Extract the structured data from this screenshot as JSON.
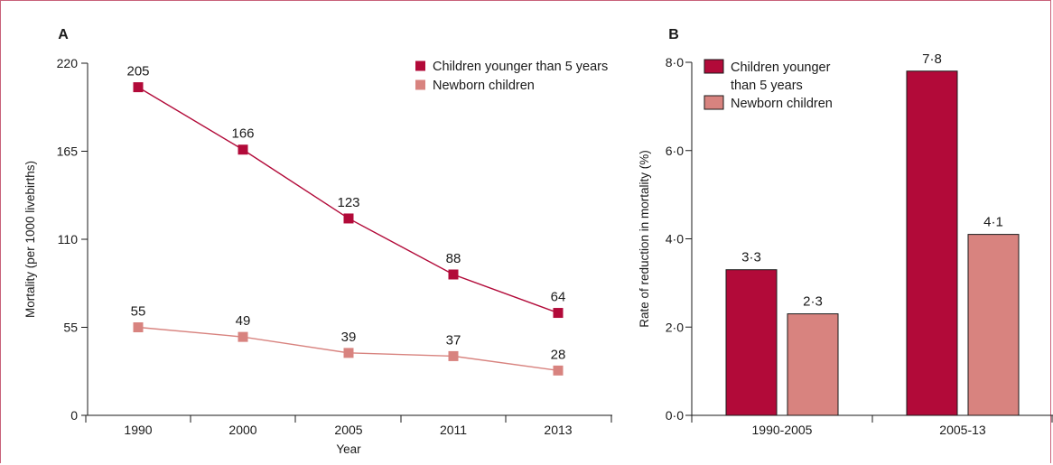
{
  "colors": {
    "under5": "#b20a39",
    "newborn": "#d8837f",
    "axis": "#1a1a1a",
    "frame": "#c8627a"
  },
  "chart_data": [
    {
      "panel": "A",
      "type": "line",
      "categories": [
        "1990",
        "2000",
        "2005",
        "2011",
        "2013"
      ],
      "series": [
        {
          "name": "Children younger than 5 years",
          "values": [
            205,
            166,
            123,
            88,
            64
          ],
          "labels": [
            "205",
            "166",
            "123",
            "88",
            "64"
          ]
        },
        {
          "name": "Newborn children",
          "values": [
            55,
            49,
            39,
            37,
            28
          ],
          "labels": [
            "55",
            "49",
            "39",
            "37",
            "28"
          ]
        }
      ],
      "xlabel": "Year",
      "ylabel": "Mortality (per 1000 livebirths)",
      "ylim": [
        0,
        220
      ],
      "yticks": [
        0,
        55,
        110,
        165,
        220
      ],
      "ytick_labels": [
        "0",
        "55",
        "110",
        "165",
        "220"
      ],
      "legend": [
        "Children younger than 5 years",
        "Newborn children"
      ],
      "legend_position": "top-right",
      "grid": false
    },
    {
      "panel": "B",
      "type": "bar",
      "categories": [
        "1990-2005",
        "2005-13"
      ],
      "series": [
        {
          "name": "Children younger than 5 years",
          "values": [
            3.3,
            7.8
          ],
          "labels": [
            "3·3",
            "7·8"
          ]
        },
        {
          "name": "Newborn children",
          "values": [
            2.3,
            4.1
          ],
          "labels": [
            "2·3",
            "4·1"
          ]
        }
      ],
      "xlabel": "",
      "ylabel": "Rate of reduction in mortality (%)",
      "ylim": [
        0,
        8
      ],
      "yticks": [
        0,
        2,
        4,
        6,
        8
      ],
      "ytick_labels": [
        "0·0",
        "2·0",
        "4·0",
        "6·0",
        "8·0"
      ],
      "legend": [
        "Children younger than 5 years",
        "Newborn children"
      ],
      "legend_label_lines": [
        [
          "Children younger",
          "than 5 years"
        ],
        [
          "Newborn children"
        ]
      ],
      "legend_position": "top-left",
      "grid": false
    }
  ]
}
